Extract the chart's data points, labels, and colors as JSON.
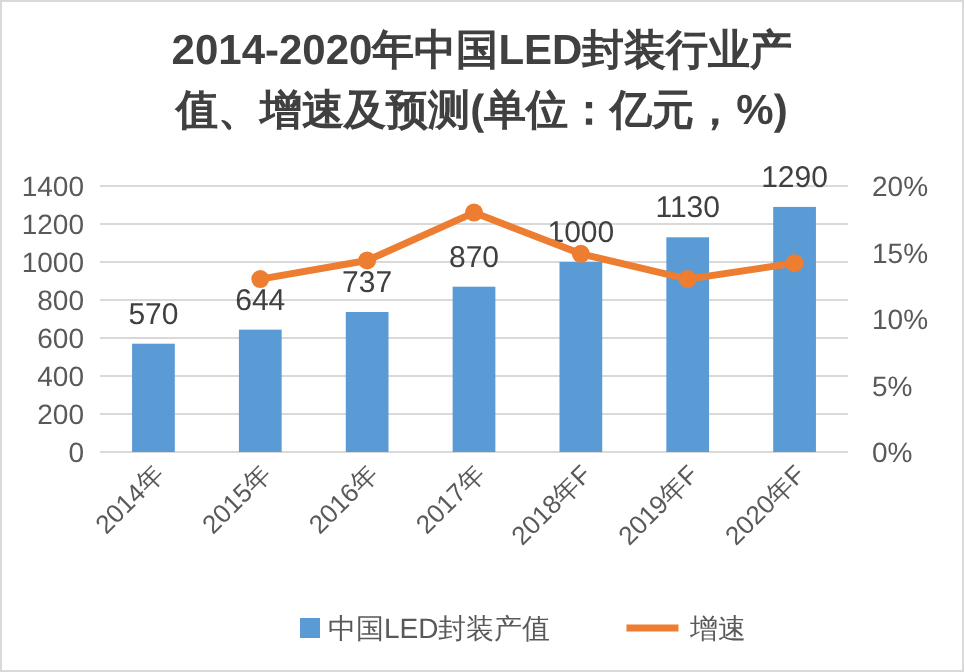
{
  "chart_data": {
    "type": "bar",
    "title": "2014-2020年中国LED封装行业产值、增速及预测(单位：亿元，%)",
    "categories": [
      "2014年",
      "2015年",
      "2016年",
      "2017年",
      "2018年F",
      "2019年F",
      "2020年F"
    ],
    "series": [
      {
        "name": "中国LED封装产值",
        "color": "#5b9bd5",
        "values": [
          570,
          644,
          737,
          870,
          1000,
          1130,
          1290
        ],
        "value_labels": [
          "570",
          "644",
          "737",
          "870",
          "1000",
          "1130",
          "1290"
        ]
      },
      {
        "name": "增速",
        "type": "line",
        "axis": "y2",
        "color": "#ed7d31",
        "marker": "circle",
        "values": [
          null,
          13,
          14.4,
          18,
          14.9,
          13,
          14.2
        ]
      }
    ],
    "ylim": [
      0,
      1400
    ],
    "yticks": [
      0,
      200,
      400,
      600,
      800,
      1000,
      1200,
      1400
    ],
    "y2lim": [
      0,
      20
    ],
    "y2ticks": [
      {
        "value": 0,
        "label": "0%"
      },
      {
        "value": 5,
        "label": "5%"
      },
      {
        "value": 10,
        "label": "10%"
      },
      {
        "value": 15,
        "label": "15%"
      },
      {
        "value": 20,
        "label": "20%"
      }
    ],
    "grid": "y",
    "legend": "bottom"
  }
}
